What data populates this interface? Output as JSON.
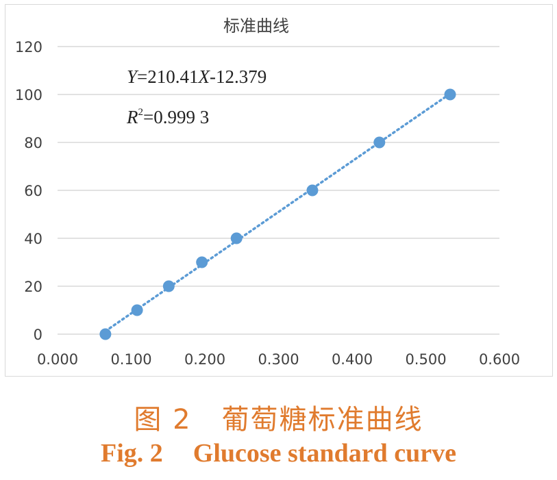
{
  "chart_data": {
    "type": "scatter",
    "title": "标准曲线",
    "xlabel": "",
    "ylabel": "",
    "xlim": [
      0,
      0.6
    ],
    "ylim": [
      0,
      120
    ],
    "x_ticks": [
      "0.000",
      "0.100",
      "0.200",
      "0.300",
      "0.400",
      "0.500",
      "0.600"
    ],
    "y_ticks": [
      "0",
      "20",
      "40",
      "60",
      "80",
      "100",
      "120"
    ],
    "grid": "horizontal",
    "trendline": "linear dotted",
    "equation": {
      "y_var": "Y",
      "eq": "=210.41",
      "x_var": "X",
      "rest": "-12.379"
    },
    "r_squared": {
      "r": "R",
      "sup": "2",
      "rest": "=0.999 3"
    },
    "series": [
      {
        "x": [
          0.065,
          0.108,
          0.151,
          0.196,
          0.243,
          0.346,
          0.437,
          0.533
        ],
        "y": [
          0,
          10,
          20,
          30,
          40,
          60,
          80,
          100
        ]
      }
    ],
    "colors": {
      "marker": "#5b9bd5",
      "grid": "#d9d9d9",
      "text": "#404040"
    }
  },
  "caption": {
    "cn_fig": "图 2",
    "cn_text": "葡萄糖标准曲线",
    "en_fig": "Fig. 2",
    "en_text": "Glucose standard curve",
    "color": "#e07b2e"
  }
}
